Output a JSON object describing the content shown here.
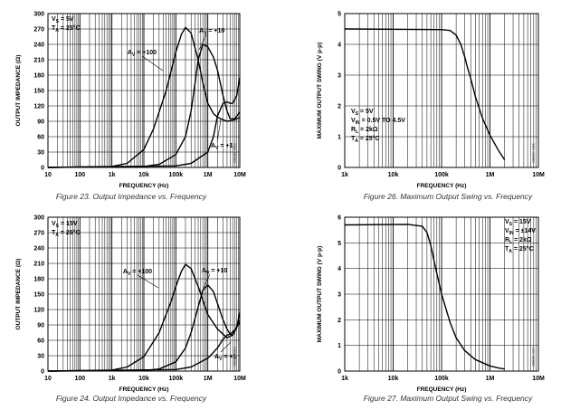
{
  "chart_data": [
    {
      "id": "fig23",
      "type": "line",
      "title": "",
      "caption": "Figure 23. Output Impedance vs. Frequency",
      "xlabel": "FREQUENCY (Hz)",
      "ylabel": "OUTPUT IMPEDANCE (Ω)",
      "xscale": "log",
      "xlim": [
        10,
        10000000
      ],
      "ylim": [
        0,
        300
      ],
      "xticks": [
        10,
        100,
        1000,
        10000,
        100000,
        1000000,
        10000000
      ],
      "xtick_labels": [
        "10",
        "100",
        "1k",
        "10k",
        "100k",
        "1M",
        "10M"
      ],
      "yticks": [
        0,
        30,
        60,
        90,
        120,
        150,
        180,
        210,
        240,
        270,
        300
      ],
      "ytick_labels": [
        "0",
        "30",
        "60",
        "90",
        "120",
        "150",
        "180",
        "210",
        "240",
        "270",
        "300"
      ],
      "conditions": [
        {
          "p": "V",
          "s": "S",
          "r": " = 5V"
        },
        {
          "p": "T",
          "s": "A",
          "r": " = 25°C"
        }
      ],
      "side_label": "00500-023",
      "series": [
        {
          "name": "AV = +100",
          "label": {
            "p": "A",
            "s": "V",
            "r": " = +100"
          },
          "x": [
            10,
            1000,
            3000,
            10000,
            20000,
            50000,
            100000,
            150000,
            200000,
            300000,
            500000,
            700000,
            1000000,
            1500000,
            2000000,
            3000000,
            4000000,
            6000000,
            10000000
          ],
          "y": [
            0,
            2,
            8,
            35,
            75,
            150,
            225,
            260,
            273,
            262,
            210,
            165,
            125,
            105,
            98,
            93,
            90,
            92,
            97
          ]
        },
        {
          "name": "AV = +10",
          "label": {
            "p": "A",
            "s": "V",
            "r": " = +10"
          },
          "x": [
            10,
            10000,
            30000,
            100000,
            200000,
            300000,
            400000,
            500000,
            700000,
            1000000,
            1500000,
            2000000,
            3000000,
            4000000,
            5000000,
            7000000,
            10000000
          ],
          "y": [
            0,
            2,
            6,
            25,
            60,
            110,
            165,
            210,
            240,
            235,
            215,
            190,
            140,
            110,
            95,
            95,
            108
          ]
        },
        {
          "name": "AV = +1",
          "label": {
            "p": "A",
            "s": "V",
            "r": " = +1"
          },
          "x": [
            10,
            100000,
            300000,
            1000000,
            1500000,
            2000000,
            3000000,
            4000000,
            5000000,
            6000000,
            8000000,
            10000000
          ],
          "y": [
            0,
            3,
            8,
            30,
            60,
            100,
            125,
            128,
            125,
            125,
            140,
            175
          ]
        }
      ]
    },
    {
      "id": "fig26",
      "type": "line",
      "title": "",
      "caption": "Figure 26. Maximum Output Swing vs. Frequency",
      "xlabel": "FREQUENCY (Hz)",
      "ylabel": "MAXIMUM OUTPUT SWING (V p-p)",
      "xscale": "log",
      "xlim": [
        1000,
        10000000
      ],
      "ylim": [
        0,
        5
      ],
      "xticks": [
        1000,
        10000,
        100000,
        1000000,
        10000000
      ],
      "xtick_labels": [
        "1k",
        "10k",
        "100k",
        "1M",
        "10M"
      ],
      "yticks": [
        0,
        1,
        2,
        3,
        4,
        5
      ],
      "ytick_labels": [
        "0",
        "1",
        "2",
        "3",
        "4",
        "5"
      ],
      "conditions": [
        {
          "p": "V",
          "s": "S",
          "r": " = 5V"
        },
        {
          "p": "V",
          "s": "IN",
          "r": " = 0.5V TO 4.5V"
        },
        {
          "p": "R",
          "s": "L",
          "r": " = 2kΩ"
        },
        {
          "p": "T",
          "s": "A",
          "r": " = 25°C"
        }
      ],
      "side_label": "00500-026",
      "series": [
        {
          "name": "swing",
          "x": [
            1000,
            100000,
            150000,
            200000,
            250000,
            300000,
            350000,
            400000,
            500000,
            700000,
            1000000,
            1500000,
            2000000
          ],
          "y": [
            4.5,
            4.48,
            4.45,
            4.3,
            4.0,
            3.6,
            3.2,
            2.9,
            2.3,
            1.6,
            1.05,
            0.55,
            0.25
          ]
        }
      ]
    },
    {
      "id": "fig24",
      "type": "line",
      "title": "",
      "caption": "Figure 24. Output Impedance vs. Frequency",
      "xlabel": "FREQUENCY (Hz)",
      "ylabel": "OUTPUT IMPEDANCE (Ω)",
      "xscale": "log",
      "xlim": [
        10,
        10000000
      ],
      "ylim": [
        0,
        300
      ],
      "xticks": [
        10,
        100,
        1000,
        10000,
        100000,
        1000000,
        10000000
      ],
      "xtick_labels": [
        "10",
        "100",
        "1k",
        "10k",
        "100k",
        "1M",
        "10M"
      ],
      "yticks": [
        0,
        30,
        60,
        90,
        120,
        150,
        180,
        210,
        240,
        270,
        300
      ],
      "ytick_labels": [
        "0",
        "30",
        "60",
        "90",
        "120",
        "150",
        "180",
        "210",
        "240",
        "270",
        "300"
      ],
      "conditions": [
        {
          "p": "V",
          "s": "S",
          "r": " = 15V"
        },
        {
          "p": "T",
          "s": "A",
          "r": " = 25°C"
        }
      ],
      "side_label": "00500-024",
      "series": [
        {
          "name": "AV = +100",
          "label": {
            "p": "A",
            "s": "V",
            "r": " = +100"
          },
          "x": [
            10,
            1000,
            3000,
            10000,
            30000,
            70000,
            100000,
            150000,
            200000,
            300000,
            500000,
            1000000,
            2000000,
            3000000,
            4000000,
            6000000,
            10000000
          ],
          "y": [
            0,
            2,
            8,
            28,
            75,
            135,
            165,
            195,
            208,
            200,
            165,
            110,
            82,
            72,
            65,
            70,
            100
          ]
        },
        {
          "name": "AV = +10",
          "label": {
            "p": "A",
            "s": "V",
            "r": " = +10"
          },
          "x": [
            10,
            10000,
            30000,
            100000,
            200000,
            300000,
            500000,
            700000,
            1000000,
            1500000,
            2000000,
            3000000,
            4000000,
            5000000,
            6000000,
            8000000,
            10000000
          ],
          "y": [
            0,
            1,
            4,
            18,
            45,
            75,
            125,
            158,
            168,
            155,
            132,
            100,
            82,
            72,
            70,
            85,
            115
          ]
        },
        {
          "name": "AV = +1",
          "label": {
            "p": "A",
            "s": "V",
            "r": " = +1"
          },
          "x": [
            10,
            100000,
            300000,
            1000000,
            2000000,
            3000000,
            4000000,
            5000000,
            7000000,
            10000000
          ],
          "y": [
            0,
            3,
            8,
            25,
            45,
            62,
            70,
            72,
            80,
            95
          ]
        }
      ]
    },
    {
      "id": "fig27",
      "type": "line",
      "title": "",
      "caption": "Figure 27. Maximum Output Swing vs. Frequency",
      "xlabel": "FREQUENCY (Hz)",
      "ylabel": "MAXIMUM OUTPUT SWING (V p-p)",
      "xscale": "log",
      "xlim": [
        1000,
        10000000
      ],
      "ylim": [
        0,
        6
      ],
      "xticks": [
        1000,
        10000,
        100000,
        1000000,
        10000000
      ],
      "xtick_labels": [
        "1k",
        "10k",
        "100k",
        "1M",
        "10M"
      ],
      "yticks": [
        0,
        1,
        2,
        3,
        4,
        5,
        6
      ],
      "ytick_labels": [
        "0",
        "1",
        "2",
        "3",
        "4",
        "5",
        "6"
      ],
      "conditions": [
        {
          "p": "V",
          "s": "S",
          "r": " = 15V"
        },
        {
          "p": "V",
          "s": "IN",
          "r": " = ±14V"
        },
        {
          "p": "R",
          "s": "L",
          "r": " = 2kΩ"
        },
        {
          "p": "T",
          "s": "A",
          "r": " = 25°C"
        }
      ],
      "side_label": "00500-027",
      "series": [
        {
          "name": "swing",
          "x": [
            1000,
            20000,
            40000,
            50000,
            60000,
            70000,
            80000,
            100000,
            150000,
            200000,
            300000,
            500000,
            1000000,
            1500000,
            2000000
          ],
          "y": [
            5.7,
            5.72,
            5.65,
            5.4,
            4.9,
            4.3,
            3.8,
            3.0,
            1.9,
            1.3,
            0.8,
            0.45,
            0.2,
            0.12,
            0.08
          ]
        }
      ]
    }
  ]
}
